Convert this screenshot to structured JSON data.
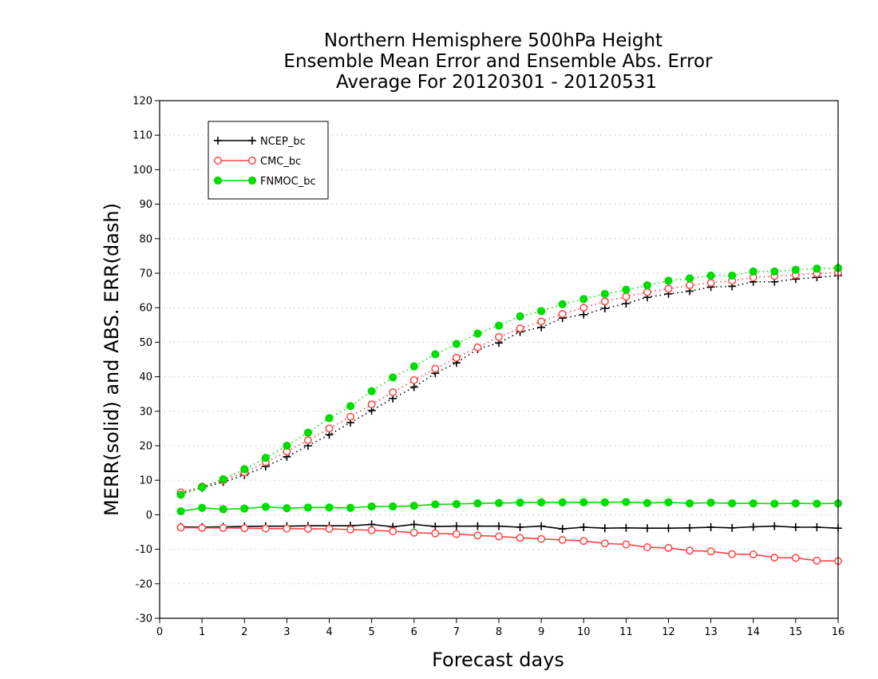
{
  "chart_data": {
    "type": "line",
    "title_lines": [
      "Northern Hemisphere 500hPa Height",
      "Ensemble Mean Error and Ensemble Abs. Error",
      "Average For 20120301 - 20120531"
    ],
    "xlabel": "Forecast days",
    "ylabel": "MERR(solid) and ABS. ERR(dash)",
    "xlim": [
      0,
      16
    ],
    "ylim": [
      -30,
      120
    ],
    "x_ticks": [
      0,
      1,
      2,
      3,
      4,
      5,
      6,
      7,
      8,
      9,
      10,
      11,
      12,
      13,
      14,
      15,
      16
    ],
    "y_ticks": [
      -30,
      -20,
      -10,
      0,
      10,
      20,
      30,
      40,
      50,
      60,
      70,
      80,
      90,
      100,
      110,
      120
    ],
    "grid": "horizontal dotted",
    "legend_position": "top-left",
    "x": [
      0.5,
      1,
      1.5,
      2,
      2.5,
      3,
      3.5,
      4,
      4.5,
      5,
      5.5,
      6,
      6.5,
      7,
      7.5,
      8,
      8.5,
      9,
      9.5,
      10,
      10.5,
      11,
      11.5,
      12,
      12.5,
      13,
      13.5,
      14,
      14.5,
      15,
      15.5,
      16
    ],
    "series": [
      {
        "name": "NCEP_bc",
        "color": "#000000",
        "marker": "plus",
        "merr": [
          -3.5,
          -3.6,
          -3.5,
          -3.4,
          -3.3,
          -3.3,
          -3.2,
          -3.2,
          -3.2,
          -2.8,
          -3.5,
          -2.8,
          -3.4,
          -3.3,
          -3.3,
          -3.3,
          -3.6,
          -3.3,
          -4.1,
          -3.6,
          -3.9,
          -3.8,
          -3.9,
          -3.9,
          -3.8,
          -3.6,
          -3.8,
          -3.5,
          -3.3,
          -3.6,
          -3.6,
          -3.9
        ],
        "abs_err": [
          6.2,
          7.8,
          9.5,
          11.5,
          14.0,
          16.8,
          20.0,
          23.2,
          26.7,
          30.2,
          33.7,
          37.0,
          41.0,
          44.0,
          48.0,
          49.8,
          53.0,
          54.3,
          57.0,
          58.0,
          59.8,
          61.2,
          63.0,
          64.0,
          64.8,
          66.0,
          66.2,
          67.5,
          67.5,
          68.3,
          68.8,
          69.3
        ]
      },
      {
        "name": "CMC_bc",
        "color": "#ff4444",
        "marker": "open-circle",
        "merr": [
          -3.7,
          -3.8,
          -3.8,
          -3.9,
          -4.0,
          -4.0,
          -4.1,
          -4.1,
          -4.3,
          -4.5,
          -4.8,
          -5.2,
          -5.4,
          -5.6,
          -6.0,
          -6.3,
          -6.7,
          -7.0,
          -7.3,
          -7.6,
          -8.3,
          -8.6,
          -9.4,
          -9.6,
          -10.4,
          -10.6,
          -11.4,
          -11.5,
          -12.4,
          -12.5,
          -13.3,
          -13.4
        ],
        "abs_err": [
          6.5,
          8.2,
          10.0,
          12.3,
          15.2,
          18.3,
          21.6,
          25.0,
          28.4,
          32.0,
          35.5,
          39.0,
          42.3,
          45.5,
          48.5,
          51.5,
          54.0,
          56.0,
          58.2,
          60.0,
          61.8,
          63.2,
          64.5,
          65.5,
          66.5,
          67.2,
          67.8,
          68.8,
          69.2,
          69.5,
          69.9,
          70.2
        ]
      },
      {
        "name": "FNMOC_bc",
        "color": "#00dd00",
        "marker": "filled-circle",
        "merr": [
          1.0,
          2.0,
          1.6,
          1.8,
          2.3,
          1.9,
          2.1,
          2.1,
          2.0,
          2.4,
          2.4,
          2.6,
          3.0,
          3.1,
          3.3,
          3.4,
          3.5,
          3.6,
          3.6,
          3.6,
          3.6,
          3.7,
          3.4,
          3.6,
          3.3,
          3.5,
          3.3,
          3.3,
          3.2,
          3.3,
          3.2,
          3.3
        ],
        "abs_err": [
          5.8,
          8.0,
          10.3,
          13.2,
          16.5,
          20.0,
          23.8,
          28.0,
          31.5,
          35.8,
          39.8,
          43.0,
          46.5,
          49.5,
          52.5,
          54.8,
          57.5,
          59.0,
          61.0,
          62.5,
          64.0,
          65.2,
          66.5,
          67.8,
          68.5,
          69.3,
          69.3,
          70.5,
          70.5,
          71.0,
          71.3,
          71.5
        ]
      }
    ]
  }
}
